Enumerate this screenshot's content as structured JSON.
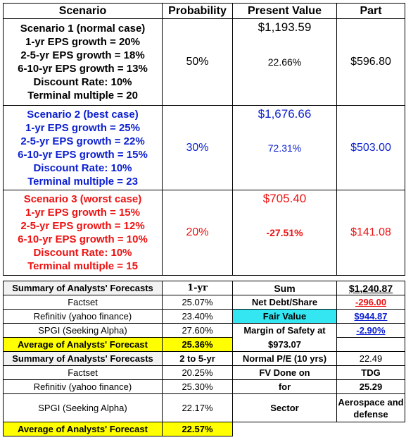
{
  "headers": [
    "Scenario",
    "Probability",
    "Present Value",
    "Part"
  ],
  "scenarios": [
    {
      "lines": [
        "Scenario 1 (normal case)",
        "1-yr EPS growth = 20%",
        "2-5-yr EPS growth = 18%",
        "6-10-yr EPS growth = 13%",
        "Discount Rate: 10%",
        "Terminal multiple = 20"
      ],
      "probability": "50%",
      "present_value": "$1,193.59",
      "return_pct": "22.66%",
      "part": "$596.80",
      "color": "#000000"
    },
    {
      "lines": [
        "Scenario 2 (best case)",
        "1-yr EPS growth = 25%",
        "2-5-yr EPS growth = 22%",
        "6-10-yr EPS growth = 15%",
        "Discount Rate: 10%",
        "Terminal multiple = 23"
      ],
      "probability": "30%",
      "present_value": "$1,676.66",
      "return_pct": "72.31%",
      "part": "$503.00",
      "color": "#0b1fd0"
    },
    {
      "lines": [
        "Scenario 3 (worst case)",
        "1-yr EPS growth = 15%",
        "2-5-yr EPS growth = 12%",
        "6-10-yr EPS growth = 10%",
        "Discount Rate: 10%",
        "Terminal multiple = 15"
      ],
      "probability": "20%",
      "present_value": "$705.40",
      "return_pct": "-27.51%",
      "part": "$141.08",
      "color": "#ee1111"
    }
  ],
  "summary1": {
    "title": "Summary of Analysts' Forecasts",
    "period": "1-yr",
    "rows": [
      {
        "source": "Factset",
        "value": "25.07%"
      },
      {
        "source": "Refinitiv (yahoo finance)",
        "value": "23.40%"
      },
      {
        "source": "SPGI (Seeking Alpha)",
        "value": "27.60%"
      }
    ],
    "avg_label": "Average of Analysts' Forecast",
    "avg_value": "25.36%"
  },
  "summary2": {
    "title": "Summary of Analysts' Forecasts",
    "period": "2 to 5-yr",
    "rows": [
      {
        "source": "Factset",
        "value": "20.25%"
      },
      {
        "source": "Refinitiv (yahoo finance)",
        "value": "25.30%"
      },
      {
        "source": "SPGI (Seeking Alpha)",
        "value": "22.17%"
      }
    ],
    "avg_label": "Average of Analysts' Forecast",
    "avg_value": "22.57%"
  },
  "valuation": {
    "sum_label": "Sum",
    "sum_value": "$1,240.87",
    "net_debt_label": "Net Debt/Share",
    "net_debt_value": "-296.00",
    "fair_value_label": "Fair Value",
    "fair_value_value": "$944.87",
    "mos_label": "Margin of Safety at",
    "mos_value": "-2.90%",
    "price": "$973.07",
    "pe_label": "Normal P/E (10 yrs)",
    "pe_value": "22.49",
    "fv_done_label": "FV Done on",
    "fv_done_value": "TDG",
    "for_label": "for",
    "for_value": "25.29",
    "sector_label": "Sector",
    "sector_value": "Aerospace and defense"
  }
}
